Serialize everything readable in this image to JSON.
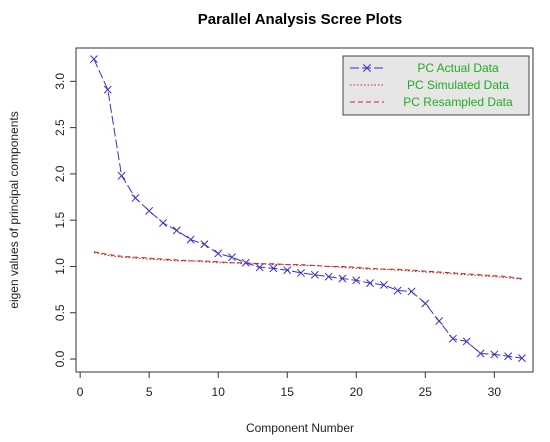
{
  "chart_data": {
    "type": "line",
    "title": "Parallel Analysis Scree Plots",
    "xlabel": "Component Number",
    "ylabel": "eigen values of principal components",
    "xlim": [
      0,
      32
    ],
    "ylim": [
      0,
      3.25
    ],
    "x_ticks": [
      "0",
      "5",
      "10",
      "15",
      "20",
      "25",
      "30"
    ],
    "y_ticks": [
      "0.0",
      "0.5",
      "1.0",
      "1.5",
      "2.0",
      "2.5",
      "3.0"
    ],
    "legend_position": "top-right",
    "x": [
      1,
      2,
      3,
      4,
      5,
      6,
      7,
      8,
      9,
      10,
      11,
      12,
      13,
      14,
      15,
      16,
      17,
      18,
      19,
      20,
      21,
      22,
      23,
      24,
      25,
      26,
      27,
      28,
      29,
      30,
      31,
      32
    ],
    "series": [
      {
        "name": "PC  Actual Data",
        "color": "#3333cc",
        "line": "longdash",
        "marker": "x",
        "values": [
          3.24,
          2.91,
          1.98,
          1.74,
          1.6,
          1.47,
          1.39,
          1.29,
          1.24,
          1.14,
          1.1,
          1.04,
          0.99,
          0.98,
          0.96,
          0.93,
          0.91,
          0.89,
          0.87,
          0.85,
          0.82,
          0.8,
          0.74,
          0.73,
          0.6,
          0.41,
          0.22,
          0.19,
          0.06,
          0.05,
          0.03,
          0.01
        ]
      },
      {
        "name": "PC  Simulated Data",
        "color": "#cc2222",
        "line": "dotted",
        "values": [
          1.15,
          1.12,
          1.1,
          1.09,
          1.08,
          1.07,
          1.06,
          1.06,
          1.05,
          1.04,
          1.04,
          1.03,
          1.03,
          1.02,
          1.02,
          1.01,
          1.01,
          1.0,
          0.99,
          0.98,
          0.97,
          0.97,
          0.96,
          0.95,
          0.94,
          0.93,
          0.92,
          0.91,
          0.9,
          0.89,
          0.88,
          0.86
        ]
      },
      {
        "name": "PC  Resampled Data",
        "color": "#cc2222",
        "line": "dashed",
        "values": [
          1.16,
          1.13,
          1.11,
          1.1,
          1.09,
          1.08,
          1.07,
          1.06,
          1.06,
          1.05,
          1.04,
          1.04,
          1.03,
          1.03,
          1.02,
          1.02,
          1.01,
          1.0,
          1.0,
          0.99,
          0.98,
          0.97,
          0.97,
          0.96,
          0.95,
          0.94,
          0.93,
          0.92,
          0.91,
          0.9,
          0.89,
          0.87
        ]
      }
    ]
  },
  "colors": {
    "legend_text": "#22aa22",
    "legend_background": "#e6e6e6",
    "axis": "#333333"
  }
}
